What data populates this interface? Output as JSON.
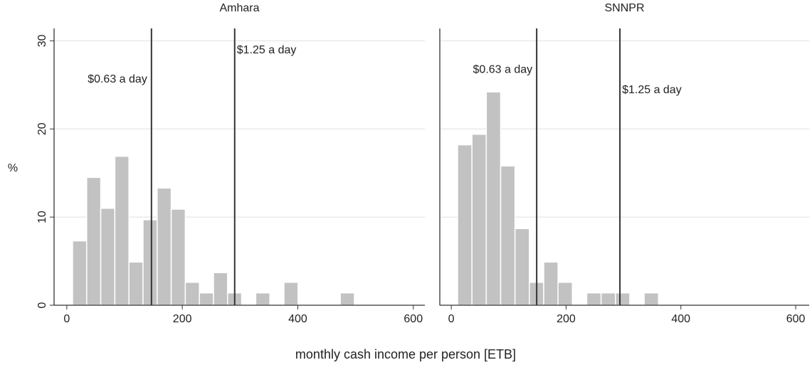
{
  "ylabel": "%",
  "xlabel": "monthly cash income per person [ETB]",
  "chart_data": [
    {
      "type": "histogram",
      "title": "Amhara",
      "color": "#c2c2c2",
      "bins": [
        10,
        34.4,
        58.8,
        83.2,
        107.6,
        132,
        156.4,
        180.8,
        205.2,
        229.6,
        254,
        278.4,
        302.8,
        327.2,
        351.6,
        376,
        400.4,
        424.8,
        449.2,
        473.6,
        498
      ],
      "values": [
        7.3,
        14.5,
        11,
        16.9,
        4.9,
        9.7,
        13.3,
        10.9,
        2.6,
        1.4,
        3.7,
        1.4,
        0,
        1.4,
        0,
        2.6,
        0,
        0,
        0,
        1.4
      ],
      "xlim": [
        -22,
        620
      ],
      "ylim": [
        0,
        31.4
      ],
      "xticks": [
        0,
        200,
        400,
        600
      ],
      "yticks": [
        0,
        10,
        20,
        30
      ],
      "grid": true,
      "annotations": [
        {
          "x": 146.6,
          "y": 25.6,
          "label": "$0.63 a day",
          "side": "left"
        },
        {
          "x": 290.7,
          "y": 28.9,
          "label": "$1.25 a day",
          "side": "right"
        }
      ]
    },
    {
      "type": "histogram",
      "title": "SNNPR",
      "color": "#c2c2c2",
      "bins": [
        11,
        36,
        61,
        86,
        111,
        136,
        161,
        186,
        211,
        236,
        261,
        286,
        311,
        336,
        361
      ],
      "values": [
        18.2,
        19.4,
        24.2,
        15.8,
        8.7,
        2.6,
        4.9,
        2.6,
        0,
        1.4,
        1.4,
        1.4,
        0,
        1.4
      ],
      "xlim": [
        -20,
        623.5
      ],
      "ylim": [
        0,
        31.4
      ],
      "xticks": [
        0,
        200,
        400,
        600
      ],
      "grid": true,
      "annotations": [
        {
          "x": 148.8,
          "y": 26.7,
          "label": "$0.63 a day",
          "side": "left"
        },
        {
          "x": 293.8,
          "y": 24.4,
          "label": "$1.25 a day",
          "side": "right"
        }
      ]
    }
  ]
}
